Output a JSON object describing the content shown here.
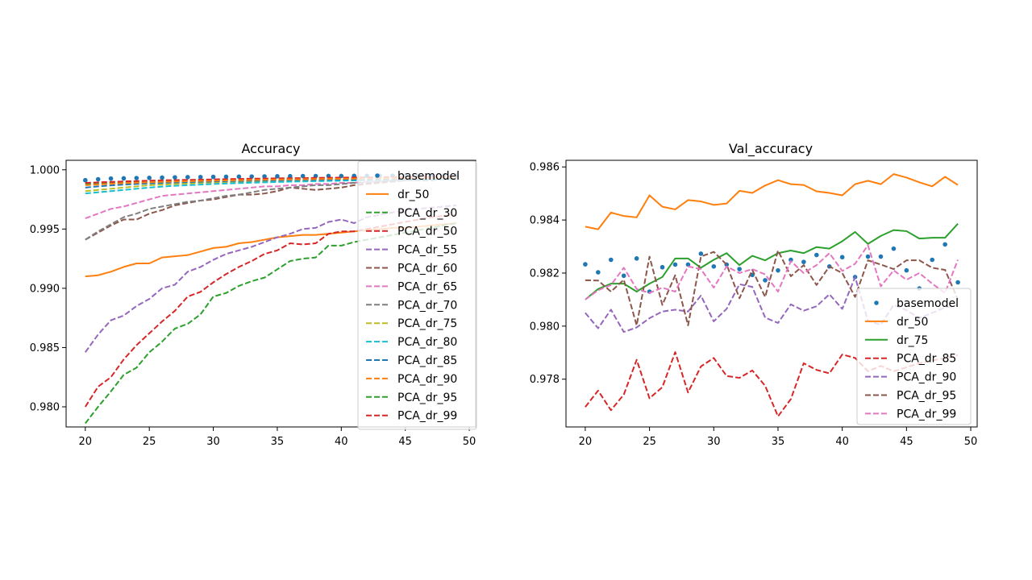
{
  "chart_data": [
    {
      "type": "line",
      "title": "Accuracy",
      "xlabel": "",
      "ylabel": "",
      "xlim": [
        18.5,
        50.5
      ],
      "ylim": [
        0.9783,
        1.0008
      ],
      "xticks": [
        20,
        25,
        30,
        35,
        40,
        45,
        50
      ],
      "yticks": [
        0.98,
        0.985,
        0.99,
        0.995,
        1.0
      ],
      "ytick_labels": [
        "0.980",
        "0.985",
        "0.990",
        "0.995",
        "1.000"
      ],
      "grid": false,
      "legend": "right",
      "x": [
        20,
        21,
        22,
        23,
        24,
        25,
        26,
        27,
        28,
        29,
        30,
        31,
        32,
        33,
        34,
        35,
        36,
        37,
        38,
        39,
        40,
        41,
        42,
        43,
        44,
        45,
        46,
        47,
        48,
        49
      ],
      "series": [
        {
          "name": "basemodel",
          "style": "dots",
          "color": "#1f77b4",
          "values": [
            0.99912,
            0.9992,
            0.99926,
            0.99928,
            0.9993,
            0.99932,
            0.99934,
            0.99936,
            0.99938,
            0.99939,
            0.9994,
            0.99941,
            0.99942,
            0.99943,
            0.99944,
            0.99945,
            0.99946,
            0.99947,
            0.99947,
            0.99948,
            0.99948,
            0.99949,
            0.99949,
            0.9995,
            0.9995,
            0.99951,
            0.99951,
            0.99952,
            0.99952,
            0.99952
          ]
        },
        {
          "name": "dr_50",
          "style": "solid",
          "color": "#ff7f0e",
          "values": [
            0.991,
            0.9911,
            0.9914,
            0.9918,
            0.9921,
            0.9921,
            0.9926,
            0.9927,
            0.9928,
            0.9931,
            0.9934,
            0.9935,
            0.9938,
            0.9939,
            0.9941,
            0.9943,
            0.9944,
            0.9945,
            0.9945,
            0.9946,
            0.9947,
            0.9948,
            0.9949,
            0.995,
            0.9951,
            0.9951,
            0.9952,
            0.9953,
            0.9954,
            0.9955
          ]
        },
        {
          "name": "PCA_dr_30",
          "style": "dashed",
          "color": "#2ca02c",
          "values": [
            0.9988,
            0.99884,
            0.99888,
            0.99892,
            0.99896,
            0.999,
            0.99903,
            0.99906,
            0.99909,
            0.99911,
            0.99913,
            0.99915,
            0.99917,
            0.99919,
            0.99921,
            0.99923,
            0.99925,
            0.99926,
            0.99928,
            0.99929,
            0.99931,
            0.99932,
            0.99933,
            0.99934,
            0.99935,
            0.99936,
            0.99937,
            0.99938,
            0.99939,
            0.9994
          ]
        },
        {
          "name": "PCA_dr_50",
          "style": "dashed",
          "color": "#d62728",
          "values": [
            0.9989,
            0.99894,
            0.99898,
            0.99902,
            0.99905,
            0.99908,
            0.99911,
            0.99913,
            0.99915,
            0.99917,
            0.99919,
            0.99921,
            0.99923,
            0.99925,
            0.99926,
            0.99928,
            0.99929,
            0.9993,
            0.99932,
            0.99933,
            0.99934,
            0.99935,
            0.99936,
            0.99937,
            0.99938,
            0.99939,
            0.9994,
            0.99941,
            0.99942,
            0.99943
          ]
        },
        {
          "name": "PCA_dr_55",
          "style": "dashed",
          "color": "#9467bd",
          "values": [
            0.9846,
            0.9861,
            0.9873,
            0.9877,
            0.9885,
            0.9891,
            0.99,
            0.9903,
            0.9914,
            0.9918,
            0.9924,
            0.9929,
            0.9932,
            0.9935,
            0.9939,
            0.9943,
            0.9946,
            0.995,
            0.9951,
            0.9956,
            0.9958,
            0.9955,
            0.996,
            0.9962,
            0.9964,
            0.9966,
            0.9967,
            0.9968,
            0.9969,
            0.997
          ]
        },
        {
          "name": "PCA_dr_60",
          "style": "dashed",
          "color": "#8c564b",
          "values": [
            0.9941,
            0.9947,
            0.9953,
            0.9958,
            0.9958,
            0.9963,
            0.9966,
            0.997,
            0.9972,
            0.9974,
            0.9975,
            0.9977,
            0.9979,
            0.9979,
            0.998,
            0.9982,
            0.9985,
            0.9984,
            0.9983,
            0.9984,
            0.9985,
            0.9987,
            0.9988,
            0.9989,
            0.999,
            0.9991,
            0.9991,
            0.9992,
            0.9992,
            0.9993
          ]
        },
        {
          "name": "PCA_dr_65",
          "style": "dashed",
          "color": "#e377c2",
          "values": [
            0.9959,
            0.9963,
            0.9967,
            0.9969,
            0.9972,
            0.9975,
            0.9978,
            0.9979,
            0.998,
            0.9981,
            0.9982,
            0.9983,
            0.9984,
            0.9985,
            0.9986,
            0.9986,
            0.9987,
            0.9987,
            0.9988,
            0.9988,
            0.9989,
            0.9989,
            0.999,
            0.999,
            0.9991,
            0.9991,
            0.9991,
            0.9992,
            0.9992,
            0.9992
          ]
        },
        {
          "name": "PCA_dr_70",
          "style": "dashed",
          "color": "#7f7f7f",
          "values": [
            0.9941,
            0.9948,
            0.9954,
            0.996,
            0.9963,
            0.9967,
            0.9969,
            0.9971,
            0.9973,
            0.9974,
            0.9976,
            0.9978,
            0.9979,
            0.9981,
            0.9983,
            0.9984,
            0.9985,
            0.9986,
            0.9987,
            0.9987,
            0.9988,
            0.9989,
            0.9989,
            0.999,
            0.999,
            0.9991,
            0.9991,
            0.9991,
            0.9992,
            0.9992
          ]
        },
        {
          "name": "PCA_dr_75",
          "style": "dashed",
          "color": "#bcbd22",
          "values": [
            0.9982,
            0.9983,
            0.9984,
            0.9985,
            0.9986,
            0.9987,
            0.99875,
            0.9988,
            0.99885,
            0.9989,
            0.99893,
            0.99896,
            0.99899,
            0.99902,
            0.99904,
            0.99906,
            0.99908,
            0.9991,
            0.99912,
            0.99914,
            0.99915,
            0.99916,
            0.99917,
            0.99918,
            0.99919,
            0.9992,
            0.99921,
            0.99922,
            0.99923,
            0.99924
          ]
        },
        {
          "name": "PCA_dr_80",
          "style": "dashed",
          "color": "#17becf",
          "values": [
            0.998,
            0.9981,
            0.9982,
            0.9983,
            0.9984,
            0.9985,
            0.99858,
            0.99865,
            0.9987,
            0.99875,
            0.9988,
            0.99884,
            0.99888,
            0.99891,
            0.99894,
            0.99897,
            0.999,
            0.99902,
            0.99904,
            0.99906,
            0.99908,
            0.9991,
            0.99911,
            0.99913,
            0.99914,
            0.99915,
            0.99916,
            0.99917,
            0.99918,
            0.99919
          ]
        },
        {
          "name": "PCA_dr_85",
          "style": "dashed",
          "color": "#1f77b4",
          "values": [
            0.9985,
            0.9986,
            0.99868,
            0.99875,
            0.9988,
            0.99885,
            0.99889,
            0.99893,
            0.99896,
            0.99899,
            0.99902,
            0.99904,
            0.99906,
            0.99908,
            0.9991,
            0.99912,
            0.99914,
            0.99915,
            0.99917,
            0.99918,
            0.99919,
            0.9992,
            0.99921,
            0.99922,
            0.99923,
            0.99924,
            0.99925,
            0.99926,
            0.99927,
            0.99928
          ]
        },
        {
          "name": "PCA_dr_90",
          "style": "dashed",
          "color": "#ff7f0e",
          "values": [
            0.9987,
            0.99876,
            0.99882,
            0.99887,
            0.99891,
            0.99895,
            0.99898,
            0.99901,
            0.99904,
            0.99906,
            0.99908,
            0.9991,
            0.99912,
            0.99914,
            0.99916,
            0.99918,
            0.99919,
            0.9992,
            0.99922,
            0.99923,
            0.99924,
            0.99925,
            0.99926,
            0.99927,
            0.99928,
            0.99929,
            0.9993,
            0.99931,
            0.99932,
            0.99933
          ]
        },
        {
          "name": "PCA_dr_95",
          "style": "dashed",
          "color": "#2ca02c",
          "values": [
            0.9786,
            0.98,
            0.9813,
            0.9827,
            0.9833,
            0.9846,
            0.9855,
            0.9866,
            0.987,
            0.9878,
            0.9893,
            0.9896,
            0.9902,
            0.9906,
            0.9909,
            0.9916,
            0.9923,
            0.9925,
            0.9926,
            0.9936,
            0.9936,
            0.9939,
            0.9941,
            0.9943,
            0.9945,
            0.9947,
            0.9949,
            0.9951,
            0.9953,
            0.9955
          ]
        },
        {
          "name": "PCA_dr_99",
          "style": "dashed",
          "color": "#d62728",
          "values": [
            0.98,
            0.9817,
            0.9825,
            0.984,
            0.9852,
            0.9862,
            0.9872,
            0.9881,
            0.9893,
            0.9897,
            0.9905,
            0.9912,
            0.9918,
            0.9923,
            0.9929,
            0.9932,
            0.9938,
            0.9937,
            0.9938,
            0.9946,
            0.9948,
            0.9948,
            0.995,
            0.9952,
            0.9954,
            0.9956,
            0.9958,
            0.996,
            0.9961,
            0.9962
          ]
        }
      ]
    },
    {
      "type": "line",
      "title": "Val_accuracy",
      "xlabel": "",
      "ylabel": "",
      "xlim": [
        18.5,
        50.5
      ],
      "ylim": [
        0.9762,
        0.98625
      ],
      "xticks": [
        20,
        25,
        30,
        35,
        40,
        45,
        50
      ],
      "yticks": [
        0.978,
        0.98,
        0.982,
        0.984,
        0.986
      ],
      "ytick_labels": [
        "0.978",
        "0.980",
        "0.982",
        "0.984",
        "0.986"
      ],
      "grid": false,
      "legend": "lower right",
      "x": [
        20,
        21,
        22,
        23,
        24,
        25,
        26,
        27,
        28,
        29,
        30,
        31,
        32,
        33,
        34,
        35,
        36,
        37,
        38,
        39,
        40,
        41,
        42,
        43,
        44,
        45,
        46,
        47,
        48,
        49
      ],
      "series": [
        {
          "name": "basemodel",
          "style": "dots",
          "color": "#1f77b4",
          "values": [
            0.98233,
            0.98203,
            0.9825,
            0.9819,
            0.98255,
            0.9813,
            0.98222,
            0.98232,
            0.98232,
            0.98273,
            0.98225,
            0.98232,
            0.98215,
            0.98193,
            0.98173,
            0.9821,
            0.9825,
            0.98242,
            0.98268,
            0.98225,
            0.9826,
            0.98185,
            0.98262,
            0.98262,
            0.98292,
            0.9821,
            0.98142,
            0.9825,
            0.98308,
            0.98165
          ]
        },
        {
          "name": "dr_50",
          "style": "solid",
          "color": "#ff7f0e",
          "values": [
            0.98375,
            0.98365,
            0.98428,
            0.98415,
            0.9841,
            0.98493,
            0.9845,
            0.9844,
            0.98475,
            0.9847,
            0.98457,
            0.98462,
            0.9851,
            0.98502,
            0.9853,
            0.9855,
            0.98535,
            0.98532,
            0.98508,
            0.98502,
            0.98493,
            0.98535,
            0.98548,
            0.98535,
            0.98573,
            0.9856,
            0.98542,
            0.98527,
            0.98563,
            0.98532
          ]
        },
        {
          "name": "dr_75",
          "style": "solid",
          "color": "#2ca02c",
          "values": [
            0.981,
            0.9814,
            0.9816,
            0.9816,
            0.9813,
            0.9816,
            0.98185,
            0.98255,
            0.98255,
            0.9822,
            0.9825,
            0.98275,
            0.9823,
            0.98265,
            0.98248,
            0.98275,
            0.98285,
            0.98275,
            0.98298,
            0.98292,
            0.9832,
            0.98355,
            0.9831,
            0.9834,
            0.98362,
            0.98358,
            0.9833,
            0.98333,
            0.98333,
            0.98386
          ]
        },
        {
          "name": "PCA_dr_85",
          "style": "dashed",
          "color": "#d62728",
          "values": [
            0.97695,
            0.97757,
            0.97683,
            0.97742,
            0.97873,
            0.97728,
            0.9777,
            0.97902,
            0.9775,
            0.97848,
            0.9788,
            0.97812,
            0.97805,
            0.97833,
            0.97775,
            0.9766,
            0.97725,
            0.9786,
            0.97835,
            0.97822,
            0.97893,
            0.9788,
            0.9783,
            0.9785,
            0.9783,
            0.97845,
            0.9786,
            0.9787,
            0.9788,
            0.9789
          ]
        },
        {
          "name": "PCA_dr_90",
          "style": "dashed",
          "color": "#9467bd",
          "values": [
            0.9805,
            0.97992,
            0.98062,
            0.97978,
            0.97995,
            0.9803,
            0.98055,
            0.98062,
            0.98055,
            0.98115,
            0.98018,
            0.98065,
            0.98158,
            0.98148,
            0.98032,
            0.98012,
            0.98082,
            0.98058,
            0.98075,
            0.9812,
            0.98065,
            0.98185,
            0.9802,
            0.98005,
            0.9808,
            0.9806,
            0.9803,
            0.9805,
            0.9807,
            0.9808
          ]
        },
        {
          "name": "PCA_dr_95",
          "style": "dashed",
          "color": "#8c564b",
          "values": [
            0.98173,
            0.98172,
            0.9813,
            0.98175,
            0.98003,
            0.98262,
            0.9808,
            0.98192,
            0.98003,
            0.98262,
            0.9828,
            0.98232,
            0.98105,
            0.98212,
            0.9811,
            0.98285,
            0.98188,
            0.9823,
            0.98155,
            0.98225,
            0.982,
            0.9811,
            0.98248,
            0.98232,
            0.98215,
            0.98248,
            0.98248,
            0.9822,
            0.98212,
            0.981
          ]
        },
        {
          "name": "PCA_dr_99",
          "style": "dashed",
          "color": "#e377c2",
          "values": [
            0.981,
            0.98135,
            0.98155,
            0.9822,
            0.9814,
            0.98125,
            0.98145,
            0.9813,
            0.98225,
            0.98215,
            0.98145,
            0.98225,
            0.982,
            0.98215,
            0.98195,
            0.9813,
            0.98245,
            0.982,
            0.9823,
            0.98275,
            0.98208,
            0.98235,
            0.98305,
            0.9815,
            0.9821,
            0.98175,
            0.982,
            0.9816,
            0.98125,
            0.9825
          ]
        }
      ]
    }
  ]
}
